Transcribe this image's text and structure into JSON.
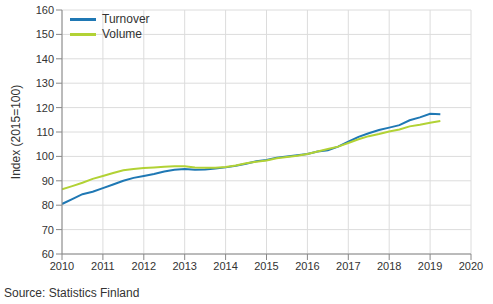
{
  "chart_data": {
    "type": "line",
    "y_label": "Index (2015=100)",
    "annotations": [
      "Source: Statistics Finland"
    ],
    "x": [
      2010,
      2010.25,
      2010.5,
      2010.75,
      2011,
      2011.25,
      2011.5,
      2011.75,
      2012,
      2012.25,
      2012.5,
      2012.75,
      2013,
      2013.25,
      2013.5,
      2013.75,
      2014,
      2014.25,
      2014.5,
      2014.75,
      2015,
      2015.25,
      2015.5,
      2015.75,
      2016,
      2016.25,
      2016.5,
      2016.75,
      2017,
      2017.25,
      2017.5,
      2017.75,
      2018,
      2018.25,
      2018.5,
      2018.75,
      2019,
      2019.25
    ],
    "series": [
      {
        "name": "Turnover",
        "color": "#1f78b4",
        "values": [
          80.5,
          82.5,
          84.5,
          85.5,
          87,
          88.5,
          90,
          91.2,
          92,
          92.8,
          93.8,
          94.5,
          94.8,
          94.5,
          94.6,
          95,
          95.5,
          96.2,
          97,
          98,
          98.5,
          99.5,
          100,
          100.5,
          101,
          102,
          102.5,
          104,
          106,
          108,
          109.5,
          110.8,
          111.8,
          112.8,
          114.8,
          116,
          117.5,
          117.3
        ]
      },
      {
        "name": "Volume",
        "color": "#b2d235",
        "values": [
          86.5,
          87.8,
          89.2,
          90.8,
          92,
          93.2,
          94.3,
          94.8,
          95.2,
          95.5,
          95.8,
          96,
          96,
          95.5,
          95.3,
          95.3,
          95.7,
          96.3,
          97.2,
          97.8,
          98.3,
          99.2,
          99.8,
          100.3,
          101,
          102,
          103,
          104,
          105.5,
          107,
          108.3,
          109.2,
          110.2,
          111,
          112.3,
          113,
          113.8,
          114.5
        ]
      }
    ],
    "xlim": [
      2010,
      2020
    ],
    "xticks": [
      2010,
      2011,
      2012,
      2013,
      2014,
      2015,
      2016,
      2017,
      2018,
      2019,
      2020
    ],
    "ylim": [
      60,
      160
    ],
    "yticks": [
      60,
      70,
      80,
      90,
      100,
      110,
      120,
      130,
      140,
      150,
      160
    ],
    "grid": true,
    "legend": "upper left"
  }
}
